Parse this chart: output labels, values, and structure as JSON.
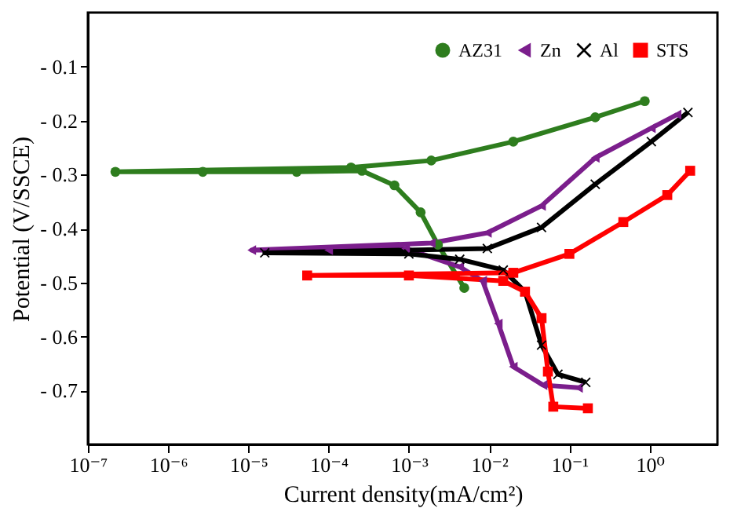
{
  "chart_data": {
    "type": "line",
    "xlabel": "Current density(mA/cm²)",
    "ylabel": "Potential (V/SSCE)",
    "log": "x",
    "grid": false,
    "legend": "top right",
    "line_style": "solid",
    "xlim": [
      1e-07,
      7
    ],
    "xticks": [
      {
        "value": 1e-07,
        "label": "10⁻⁷"
      },
      {
        "value": 1e-06,
        "label": "10⁻⁶"
      },
      {
        "value": 1e-05,
        "label": "10⁻⁵"
      },
      {
        "value": 0.0001,
        "label": "10⁻⁴"
      },
      {
        "value": 0.001,
        "label": "10⁻³"
      },
      {
        "value": 0.01,
        "label": "10⁻²"
      },
      {
        "value": 0.1,
        "label": "10⁻¹"
      },
      {
        "value": 1,
        "label": "10⁰"
      }
    ],
    "ylim": [
      -0.8,
      0
    ],
    "yticks": [
      {
        "value": -0.1,
        "label": "- 0.1"
      },
      {
        "value": -0.2,
        "label": "- 0.2"
      },
      {
        "value": -0.3,
        "label": "- 0.3"
      },
      {
        "value": -0.4,
        "label": "- 0.4"
      },
      {
        "value": -0.5,
        "label": "- 0.5"
      },
      {
        "value": -0.6,
        "label": "- 0.6"
      },
      {
        "value": -0.7,
        "label": "- 0.7"
      }
    ],
    "series": [
      {
        "name": "AZ31",
        "color": "#2e7d1e",
        "marker": "circle",
        "x": [
          0.0049,
          0.0023,
          0.0014,
          0.00066,
          0.00026,
          4e-05,
          2.7e-06,
          2.2e-07,
          0.00019,
          0.0019,
          0.02,
          0.21,
          0.87
        ],
        "values": [
          -0.51,
          -0.43,
          -0.37,
          -0.32,
          -0.293,
          -0.295,
          -0.295,
          -0.295,
          -0.287,
          -0.274,
          -0.239,
          -0.194,
          -0.164
        ]
      },
      {
        "name": "Zn",
        "color": "#7b1e8c",
        "marker": "triangle",
        "x": [
          0.13,
          0.047,
          0.02,
          0.013,
          0.0083,
          0.0043,
          0.00091,
          0.0001,
          1.1e-05,
          0.0019,
          0.0095,
          0.045,
          0.21,
          1.05,
          2.2
        ],
        "values": [
          -0.695,
          -0.69,
          -0.656,
          -0.576,
          -0.497,
          -0.471,
          -0.437,
          -0.44,
          -0.44,
          -0.427,
          -0.408,
          -0.358,
          -0.269,
          -0.214,
          -0.189
        ]
      },
      {
        "name": "Al",
        "color": "#000000",
        "marker": "cross",
        "x": [
          0.16,
          0.072,
          0.045,
          0.028,
          0.015,
          0.0043,
          0.001,
          1.6e-05,
          0.0095,
          0.045,
          0.21,
          1.05,
          3.0
        ],
        "values": [
          -0.685,
          -0.67,
          -0.616,
          -0.517,
          -0.477,
          -0.457,
          -0.447,
          -0.445,
          -0.437,
          -0.398,
          -0.318,
          -0.239,
          -0.185
        ]
      },
      {
        "name": "STS",
        "color": "#ff0000",
        "marker": "square",
        "x": [
          0.17,
          0.063,
          0.054,
          0.045,
          0.028,
          0.015,
          0.001,
          5.4e-05,
          0.02,
          0.1,
          0.47,
          1.66,
          3.2
        ],
        "values": [
          -0.733,
          -0.73,
          -0.665,
          -0.566,
          -0.517,
          -0.497,
          -0.487,
          -0.487,
          -0.482,
          -0.447,
          -0.388,
          -0.338,
          -0.293
        ]
      }
    ]
  }
}
